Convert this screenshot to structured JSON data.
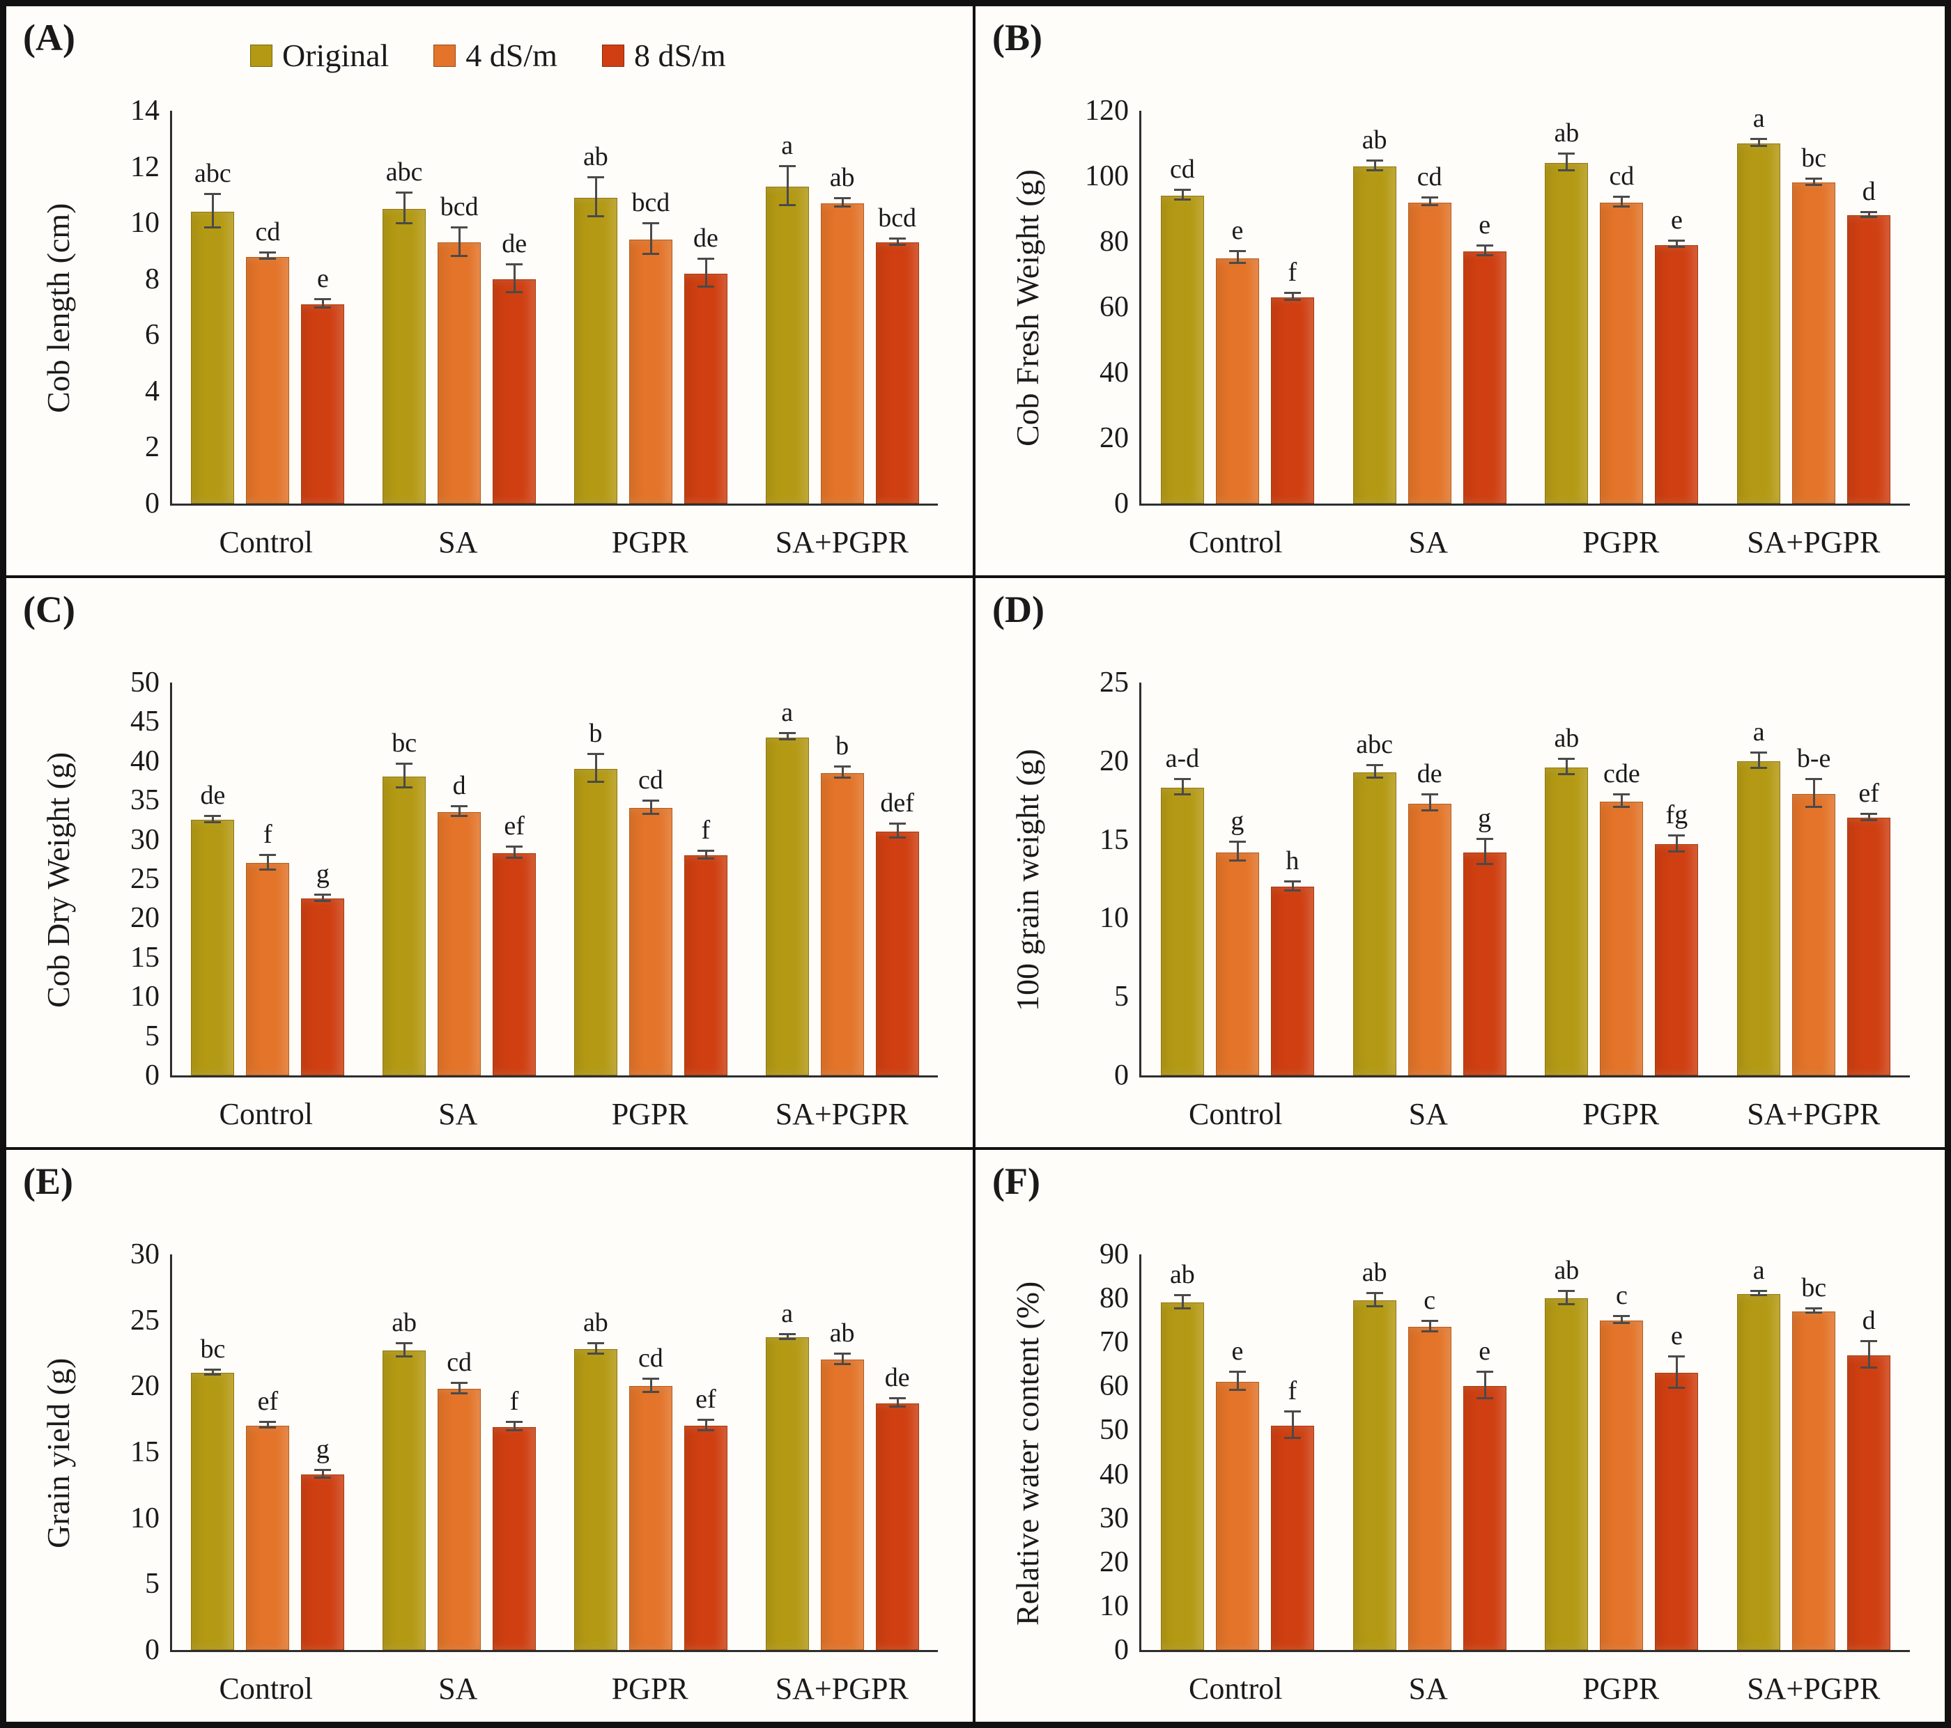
{
  "figure": {
    "legend": [
      {
        "label": "Original",
        "color": "#b49a14"
      },
      {
        "label": "4 dS/m",
        "color": "#e37429"
      },
      {
        "label": "8 dS/m",
        "color": "#cf3f11"
      }
    ],
    "categories": [
      "Control",
      "SA",
      "PGPR",
      "SA+PGPR"
    ],
    "error_bar_color": "#4a4a4a",
    "axis_color": "#2e2e2e"
  },
  "chart_data": [
    {
      "type": "bar",
      "panel_label": "(A)",
      "ylabel": "Cob length (cm)",
      "ylim": [
        0,
        14
      ],
      "ytick_step": 2,
      "grid": false,
      "legend_position": "top",
      "categories": [
        "Control",
        "SA",
        "PGPR",
        "SA+PGPR"
      ],
      "series": [
        {
          "name": "Original",
          "values": [
            10.4,
            10.5,
            10.9,
            11.3
          ],
          "errors": [
            0.6,
            0.55,
            0.7,
            0.7
          ],
          "letters": [
            "abc",
            "abc",
            "ab",
            "a"
          ]
        },
        {
          "name": "4 dS/m",
          "values": [
            8.8,
            9.3,
            9.4,
            10.7
          ],
          "errors": [
            0.12,
            0.5,
            0.55,
            0.15
          ],
          "letters": [
            "cd",
            "bcd",
            "bcd",
            "ab"
          ]
        },
        {
          "name": "8 dS/m",
          "values": [
            7.1,
            8.0,
            8.2,
            9.3
          ],
          "errors": [
            0.15,
            0.5,
            0.5,
            0.12
          ],
          "letters": [
            "e",
            "de",
            "de",
            "bcd"
          ]
        }
      ]
    },
    {
      "type": "bar",
      "panel_label": "(B)",
      "ylabel": "Cob Fresh Weight (g)",
      "ylim": [
        0,
        120
      ],
      "ytick_step": 20,
      "grid": false,
      "categories": [
        "Control",
        "SA",
        "PGPR",
        "SA+PGPR"
      ],
      "series": [
        {
          "name": "Original",
          "values": [
            94,
            103,
            104,
            110
          ],
          "errors": [
            1.5,
            1.5,
            2.5,
            1.0
          ],
          "letters": [
            "cd",
            "ab",
            "ab",
            "a"
          ]
        },
        {
          "name": "4 dS/m",
          "values": [
            75,
            92,
            92,
            98
          ],
          "errors": [
            1.8,
            1.2,
            1.5,
            1.0
          ],
          "letters": [
            "e",
            "cd",
            "cd",
            "bc"
          ]
        },
        {
          "name": "8 dS/m",
          "values": [
            63,
            77,
            79,
            88
          ],
          "errors": [
            1.0,
            1.5,
            1.0,
            0.8
          ],
          "letters": [
            "f",
            "e",
            "e",
            "d"
          ]
        }
      ]
    },
    {
      "type": "bar",
      "panel_label": "(C)",
      "ylabel": "Cob Dry Weight (g)",
      "ylim": [
        0,
        50
      ],
      "ytick_step": 5,
      "grid": false,
      "categories": [
        "Control",
        "SA",
        "PGPR",
        "SA+PGPR"
      ],
      "series": [
        {
          "name": "Original",
          "values": [
            32.5,
            38,
            39,
            43
          ],
          "errors": [
            0.4,
            1.5,
            1.8,
            0.4
          ],
          "letters": [
            "de",
            "bc",
            "b",
            "a"
          ]
        },
        {
          "name": "4 dS/m",
          "values": [
            27,
            33.5,
            34,
            38.5
          ],
          "errors": [
            0.9,
            0.6,
            0.8,
            0.7
          ],
          "letters": [
            "f",
            "d",
            "cd",
            "b"
          ]
        },
        {
          "name": "8 dS/m",
          "values": [
            22.5,
            28.3,
            28,
            31
          ],
          "errors": [
            0.4,
            0.7,
            0.5,
            0.9
          ],
          "letters": [
            "g",
            "ef",
            "f",
            "def"
          ]
        }
      ]
    },
    {
      "type": "bar",
      "panel_label": "(D)",
      "ylabel": "100 grain weight (g)",
      "ylim": [
        0,
        25
      ],
      "ytick_step": 5,
      "grid": false,
      "categories": [
        "Control",
        "SA",
        "PGPR",
        "SA+PGPR"
      ],
      "series": [
        {
          "name": "Original",
          "values": [
            18.3,
            19.3,
            19.6,
            20.0
          ],
          "errors": [
            0.5,
            0.4,
            0.5,
            0.5
          ],
          "letters": [
            "a-d",
            "abc",
            "ab",
            "a"
          ]
        },
        {
          "name": "4 dS/m",
          "values": [
            14.2,
            17.3,
            17.4,
            17.9
          ],
          "errors": [
            0.6,
            0.5,
            0.4,
            0.9
          ],
          "letters": [
            "g",
            "de",
            "cde",
            "b-e"
          ]
        },
        {
          "name": "8 dS/m",
          "values": [
            12.0,
            14.2,
            14.7,
            16.4
          ],
          "errors": [
            0.3,
            0.8,
            0.5,
            0.2
          ],
          "letters": [
            "h",
            "g",
            "fg",
            "ef"
          ]
        }
      ]
    },
    {
      "type": "bar",
      "panel_label": "(E)",
      "ylabel": "Grain yield (g)",
      "ylim": [
        0,
        30
      ],
      "ytick_step": 5,
      "grid": false,
      "categories": [
        "Control",
        "SA",
        "PGPR",
        "SA+PGPR"
      ],
      "series": [
        {
          "name": "Original",
          "values": [
            21.0,
            22.7,
            22.8,
            23.7
          ],
          "errors": [
            0.2,
            0.5,
            0.4,
            0.2
          ],
          "letters": [
            "bc",
            "ab",
            "ab",
            "a"
          ]
        },
        {
          "name": "4 dS/m",
          "values": [
            17.0,
            19.8,
            20.0,
            22.0
          ],
          "errors": [
            0.2,
            0.4,
            0.5,
            0.4
          ],
          "letters": [
            "ef",
            "cd",
            "cd",
            "ab"
          ]
        },
        {
          "name": "8 dS/m",
          "values": [
            13.3,
            16.9,
            17.0,
            18.7
          ],
          "errors": [
            0.3,
            0.3,
            0.4,
            0.3
          ],
          "letters": [
            "g",
            "f",
            "ef",
            "de"
          ]
        }
      ]
    },
    {
      "type": "bar",
      "panel_label": "(F)",
      "ylabel": "Relative water content (%)",
      "ylim": [
        0,
        90
      ],
      "ytick_step": 10,
      "grid": false,
      "categories": [
        "Control",
        "SA",
        "PGPR",
        "SA+PGPR"
      ],
      "series": [
        {
          "name": "Original",
          "values": [
            79,
            79.5,
            80,
            81
          ],
          "errors": [
            1.5,
            1.5,
            1.5,
            0.5
          ],
          "letters": [
            "ab",
            "ab",
            "ab",
            "a"
          ]
        },
        {
          "name": "4 dS/m",
          "values": [
            61,
            73.5,
            75,
            77
          ],
          "errors": [
            2.0,
            1.2,
            0.8,
            0.5
          ],
          "letters": [
            "e",
            "c",
            "c",
            "bc"
          ]
        },
        {
          "name": "8 dS/m",
          "values": [
            51,
            60,
            63,
            67
          ],
          "errors": [
            3.0,
            3.0,
            3.5,
            3.0
          ],
          "letters": [
            "f",
            "e",
            "e",
            "d"
          ]
        }
      ]
    }
  ]
}
